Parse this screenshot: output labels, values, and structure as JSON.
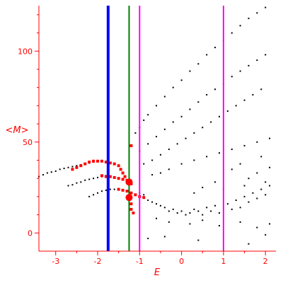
{
  "chart_data": {
    "type": "scatter",
    "xlabel": "E",
    "ylabel": "<M>",
    "xlim": [
      -3.4,
      2.25
    ],
    "ylim": [
      -10,
      125
    ],
    "x_ticks": [
      -3,
      -2,
      -1,
      0,
      1,
      2
    ],
    "y_ticks": [
      0,
      50,
      100
    ],
    "grid": false,
    "colors": {
      "axis": "#ff0000",
      "points": "#000000",
      "highlight": "#ff0000",
      "blue_line": "#0000ff",
      "green_line": "#008000",
      "magenta_line": "#ff00ff"
    },
    "vertical_lines": [
      {
        "x": -1.75,
        "color": "#0000ff",
        "width": "thick"
      },
      {
        "x": -1.25,
        "color": "#008000",
        "width": "medium"
      },
      {
        "x": -1.0,
        "color": "#ff00ff",
        "width": "medium"
      },
      {
        "x": 1.0,
        "color": "#ff00ff",
        "width": "medium"
      }
    ],
    "highlight_markers": [
      {
        "x": -1.25,
        "y": 28
      },
      {
        "x": -1.25,
        "y": 19.5
      }
    ],
    "series": [
      {
        "values": [
          [
            -3.4,
            31
          ],
          [
            -3.3,
            32
          ],
          [
            -3.2,
            33
          ],
          [
            -3.1,
            33.5
          ],
          [
            -3.0,
            34
          ],
          [
            -2.9,
            35
          ],
          [
            -2.8,
            35.5
          ],
          [
            -2.7,
            36
          ],
          [
            -2.6,
            36.5
          ],
          [
            -2.5,
            37
          ],
          [
            -2.4,
            37.5
          ],
          [
            -2.3,
            38
          ],
          [
            -2.2,
            38.5
          ],
          [
            -2.1,
            39
          ],
          [
            -2.0,
            39.5
          ],
          [
            -1.9,
            39.5
          ],
          [
            -1.8,
            39
          ],
          [
            -2.7,
            26
          ],
          [
            -2.6,
            26.5
          ],
          [
            -2.5,
            27.5
          ],
          [
            -2.4,
            28
          ],
          [
            -2.3,
            29
          ],
          [
            -2.2,
            29.5
          ],
          [
            -2.1,
            30
          ],
          [
            -2.0,
            30.5
          ],
          [
            -1.9,
            31
          ],
          [
            -1.8,
            31.5
          ],
          [
            -2.2,
            20
          ],
          [
            -2.1,
            21
          ],
          [
            -2.0,
            22
          ],
          [
            -1.9,
            23
          ],
          [
            -1.8,
            23.5
          ],
          [
            -1.7,
            24
          ],
          [
            -1.6,
            24
          ],
          [
            -1.1,
            55
          ],
          [
            -1.0,
            58
          ],
          [
            -0.9,
            62
          ],
          [
            -0.8,
            65
          ],
          [
            -0.6,
            70
          ],
          [
            -0.4,
            75
          ],
          [
            -0.2,
            80
          ],
          [
            0.0,
            84
          ],
          [
            0.2,
            89
          ],
          [
            0.4,
            93
          ],
          [
            0.6,
            98
          ],
          [
            0.8,
            102
          ],
          [
            1.0,
            106
          ],
          [
            1.2,
            110
          ],
          [
            1.4,
            114
          ],
          [
            1.6,
            118
          ],
          [
            1.8,
            121
          ],
          [
            2.0,
            124
          ],
          [
            -1.0,
            45
          ],
          [
            -0.8,
            49
          ],
          [
            -0.6,
            53
          ],
          [
            -0.4,
            57
          ],
          [
            -0.2,
            61
          ],
          [
            0.0,
            64
          ],
          [
            0.2,
            68
          ],
          [
            0.4,
            72
          ],
          [
            0.6,
            76
          ],
          [
            0.8,
            79
          ],
          [
            1.0,
            82
          ],
          [
            1.2,
            86
          ],
          [
            1.4,
            89
          ],
          [
            1.6,
            92
          ],
          [
            1.8,
            95
          ],
          [
            2.0,
            98
          ],
          [
            -0.9,
            38
          ],
          [
            -0.7,
            40
          ],
          [
            -0.5,
            43
          ],
          [
            -0.3,
            46
          ],
          [
            -0.1,
            49
          ],
          [
            0.1,
            52
          ],
          [
            0.3,
            55
          ],
          [
            0.5,
            58
          ],
          [
            0.7,
            61
          ],
          [
            0.9,
            64
          ],
          [
            1.1,
            67
          ],
          [
            1.3,
            70
          ],
          [
            1.5,
            73
          ],
          [
            1.7,
            76
          ],
          [
            1.9,
            79
          ],
          [
            -0.7,
            32
          ],
          [
            -0.5,
            33
          ],
          [
            -0.3,
            35
          ],
          [
            0.0,
            38
          ],
          [
            0.3,
            40
          ],
          [
            0.6,
            42
          ],
          [
            0.9,
            44
          ],
          [
            1.2,
            46
          ],
          [
            1.5,
            48
          ],
          [
            1.8,
            50
          ],
          [
            2.1,
            52
          ],
          [
            -1.0,
            22
          ],
          [
            -0.9,
            21
          ],
          [
            -0.8,
            18
          ],
          [
            -0.7,
            17
          ],
          [
            -0.6,
            16
          ],
          [
            -0.5,
            15
          ],
          [
            -0.4,
            14
          ],
          [
            -0.3,
            12
          ],
          [
            -0.2,
            13
          ],
          [
            -0.1,
            11
          ],
          [
            0.0,
            12
          ],
          [
            0.1,
            10
          ],
          [
            0.2,
            11
          ],
          [
            0.3,
            13
          ],
          [
            0.4,
            12
          ],
          [
            0.5,
            10
          ],
          [
            0.6,
            14
          ],
          [
            0.7,
            12
          ],
          [
            0.8,
            15
          ],
          [
            0.9,
            11
          ],
          [
            1.1,
            16
          ],
          [
            1.2,
            13
          ],
          [
            1.3,
            18
          ],
          [
            1.4,
            14
          ],
          [
            1.5,
            20
          ],
          [
            1.6,
            17
          ],
          [
            1.7,
            22
          ],
          [
            1.8,
            19
          ],
          [
            1.9,
            24
          ],
          [
            2.0,
            21
          ],
          [
            2.1,
            26
          ],
          [
            -0.6,
            8
          ],
          [
            -0.3,
            6
          ],
          [
            0.2,
            5
          ],
          [
            0.5,
            7
          ],
          [
            0.9,
            4
          ],
          [
            1.4,
            6
          ],
          [
            1.8,
            3
          ],
          [
            2.1,
            5
          ],
          [
            1.2,
            35
          ],
          [
            1.4,
            38
          ],
          [
            1.6,
            30
          ],
          [
            1.8,
            33
          ],
          [
            2.0,
            28
          ],
          [
            2.1,
            36
          ],
          [
            1.5,
            26
          ],
          [
            1.9,
            42
          ],
          [
            0.8,
            28
          ],
          [
            0.5,
            25
          ],
          [
            1.0,
            24
          ],
          [
            0.3,
            22
          ],
          [
            -0.8,
            -3
          ],
          [
            -0.4,
            -2
          ],
          [
            0.4,
            -4
          ],
          [
            1.6,
            -6
          ],
          [
            2.0,
            -1
          ]
        ]
      },
      {
        "values": [
          [
            -2.6,
            35
          ],
          [
            -2.5,
            36
          ],
          [
            -2.4,
            37
          ],
          [
            -2.3,
            38
          ],
          [
            -2.2,
            39
          ],
          [
            -2.1,
            39.5
          ],
          [
            -2.0,
            39.5
          ],
          [
            -1.9,
            39.5
          ],
          [
            -1.8,
            39
          ],
          [
            -1.7,
            38.5
          ],
          [
            -1.6,
            38
          ],
          [
            -1.5,
            37
          ],
          [
            -1.45,
            35
          ],
          [
            -1.4,
            33
          ],
          [
            -1.35,
            31
          ],
          [
            -1.3,
            29
          ],
          [
            -1.2,
            27
          ],
          [
            -1.9,
            31.5
          ],
          [
            -1.8,
            31
          ],
          [
            -1.7,
            31
          ],
          [
            -1.6,
            30.5
          ],
          [
            -1.5,
            30
          ],
          [
            -1.4,
            29.5
          ],
          [
            -1.5,
            24
          ],
          [
            -1.4,
            23.5
          ],
          [
            -1.3,
            23
          ],
          [
            -1.2,
            22
          ],
          [
            -1.1,
            21
          ],
          [
            -1.0,
            20
          ],
          [
            -0.9,
            19.5
          ],
          [
            -1.2,
            48
          ],
          [
            -1.2,
            16
          ],
          [
            -1.2,
            13
          ],
          [
            -1.15,
            11
          ]
        ]
      }
    ]
  }
}
